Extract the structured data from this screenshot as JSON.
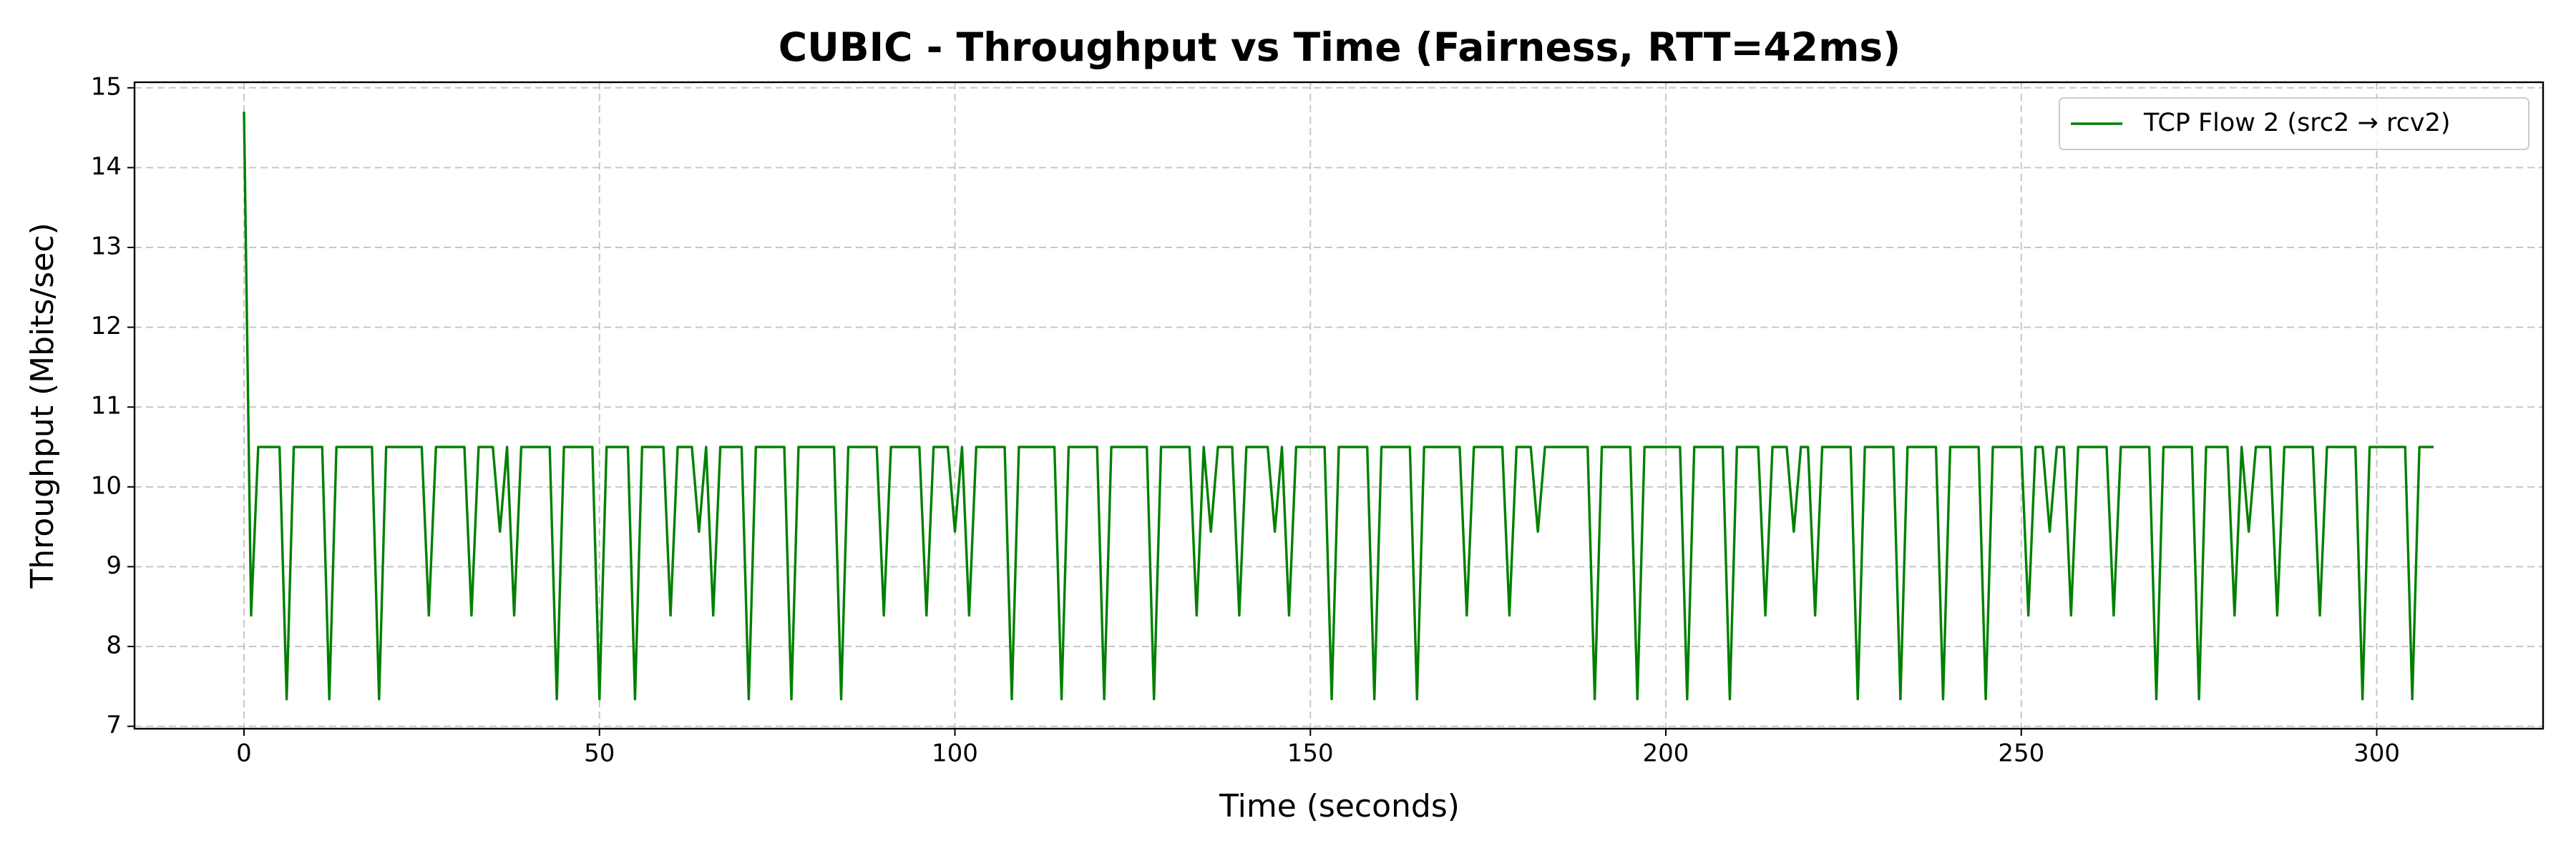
{
  "chart_data": {
    "type": "line",
    "title": "CUBIC - Throughput vs Time (Fairness, RTT=42ms)",
    "xlabel": "Time (seconds)",
    "ylabel": "Throughput (Mbits/sec)",
    "xlim": [
      -15.4,
      323.4
    ],
    "ylim": [
      6.97,
      15.07
    ],
    "xticks": [
      0,
      50,
      100,
      150,
      200,
      250,
      300
    ],
    "yticks": [
      7,
      8,
      9,
      10,
      11,
      12,
      13,
      14,
      15
    ],
    "grid": true,
    "legend": "upper right",
    "x": [
      0,
      1,
      2,
      3,
      4,
      5,
      6,
      7,
      8,
      9,
      10,
      11,
      12,
      13,
      14,
      15,
      16,
      17,
      18,
      19,
      20,
      21,
      22,
      23,
      24,
      25,
      26,
      27,
      28,
      29,
      30,
      31,
      32,
      33,
      34,
      35,
      36,
      37,
      38,
      39,
      40,
      41,
      42,
      43,
      44,
      45,
      46,
      47,
      48,
      49,
      50,
      51,
      52,
      53,
      54,
      55,
      56,
      57,
      58,
      59,
      60,
      61,
      62,
      63,
      64,
      65,
      66,
      67,
      68,
      69,
      70,
      71,
      72,
      73,
      74,
      75,
      76,
      77,
      78,
      79,
      80,
      81,
      82,
      83,
      84,
      85,
      86,
      87,
      88,
      89,
      90,
      91,
      92,
      93,
      94,
      95,
      96,
      97,
      98,
      99,
      100,
      101,
      102,
      103,
      104,
      105,
      106,
      107,
      108,
      109,
      110,
      111,
      112,
      113,
      114,
      115,
      116,
      117,
      118,
      119,
      120,
      121,
      122,
      123,
      124,
      125,
      126,
      127,
      128,
      129,
      130,
      131,
      132,
      133,
      134,
      135,
      136,
      137,
      138,
      139,
      140,
      141,
      142,
      143,
      144,
      145,
      146,
      147,
      148,
      149,
      150,
      151,
      152,
      153,
      154,
      155,
      156,
      157,
      158,
      159,
      160,
      161,
      162,
      163,
      164,
      165,
      166,
      167,
      168,
      169,
      170,
      171,
      172,
      173,
      174,
      175,
      176,
      177,
      178,
      179,
      180,
      181,
      182,
      183,
      184,
      185,
      186,
      187,
      188,
      189,
      190,
      191,
      192,
      193,
      194,
      195,
      196,
      197,
      198,
      199,
      200,
      201,
      202,
      203,
      204,
      205,
      206,
      207,
      208,
      209,
      210,
      211,
      212,
      213,
      214,
      215,
      216,
      217,
      218,
      219,
      220,
      221,
      222,
      223,
      224,
      225,
      226,
      227,
      228,
      229,
      230,
      231,
      232,
      233,
      234,
      235,
      236,
      237,
      238,
      239,
      240,
      241,
      242,
      243,
      244,
      245,
      246,
      247,
      248,
      249,
      250,
      251,
      252,
      253,
      254,
      255,
      256,
      257,
      258,
      259,
      260,
      261,
      262,
      263,
      264,
      265,
      266,
      267,
      268,
      269,
      270,
      271,
      272,
      273,
      274,
      275,
      276,
      277,
      278,
      279,
      280,
      281,
      282,
      283,
      284,
      285,
      286,
      287,
      288,
      289,
      290,
      291,
      292,
      293,
      294,
      295,
      296,
      297,
      298,
      299,
      300,
      301,
      302,
      303,
      304,
      305,
      306,
      307,
      308
    ],
    "series": [
      {
        "name": "TCP Flow 2 (src2 → rcv2)",
        "color": "#008000",
        "values": [
          14.7,
          8.39,
          10.5,
          10.5,
          10.5,
          10.5,
          7.34,
          10.5,
          10.5,
          10.5,
          10.5,
          10.5,
          7.34,
          10.5,
          10.5,
          10.5,
          10.5,
          10.5,
          10.5,
          7.34,
          10.5,
          10.5,
          10.5,
          10.5,
          10.5,
          10.5,
          8.39,
          10.5,
          10.5,
          10.5,
          10.5,
          10.5,
          8.39,
          10.5,
          10.5,
          10.5,
          9.44,
          10.5,
          8.39,
          10.5,
          10.5,
          10.5,
          10.5,
          10.5,
          7.34,
          10.5,
          10.5,
          10.5,
          10.5,
          10.5,
          7.34,
          10.5,
          10.5,
          10.5,
          10.5,
          7.34,
          10.5,
          10.5,
          10.5,
          10.5,
          8.39,
          10.5,
          10.5,
          10.5,
          9.44,
          10.5,
          8.39,
          10.5,
          10.5,
          10.5,
          10.5,
          7.34,
          10.5,
          10.5,
          10.5,
          10.5,
          10.5,
          7.34,
          10.5,
          10.5,
          10.5,
          10.5,
          10.5,
          10.5,
          7.34,
          10.5,
          10.5,
          10.5,
          10.5,
          10.5,
          8.39,
          10.5,
          10.5,
          10.5,
          10.5,
          10.5,
          8.39,
          10.5,
          10.5,
          10.5,
          9.44,
          10.5,
          8.39,
          10.5,
          10.5,
          10.5,
          10.5,
          10.5,
          7.34,
          10.5,
          10.5,
          10.5,
          10.5,
          10.5,
          10.5,
          7.34,
          10.5,
          10.5,
          10.5,
          10.5,
          10.5,
          7.34,
          10.5,
          10.5,
          10.5,
          10.5,
          10.5,
          10.5,
          7.34,
          10.5,
          10.5,
          10.5,
          10.5,
          10.5,
          8.39,
          10.5,
          9.44,
          10.5,
          10.5,
          10.5,
          8.39,
          10.5,
          10.5,
          10.5,
          10.5,
          9.44,
          10.5,
          8.39,
          10.5,
          10.5,
          10.5,
          10.5,
          10.5,
          7.34,
          10.5,
          10.5,
          10.5,
          10.5,
          10.5,
          7.34,
          10.5,
          10.5,
          10.5,
          10.5,
          10.5,
          7.34,
          10.5,
          10.5,
          10.5,
          10.5,
          10.5,
          10.5,
          8.39,
          10.5,
          10.5,
          10.5,
          10.5,
          10.5,
          8.39,
          10.5,
          10.5,
          10.5,
          9.44,
          10.5,
          10.5,
          10.5,
          10.5,
          10.5,
          10.5,
          10.5,
          7.34,
          10.5,
          10.5,
          10.5,
          10.5,
          10.5,
          7.34,
          10.5,
          10.5,
          10.5,
          10.5,
          10.5,
          10.5,
          7.34,
          10.5,
          10.5,
          10.5,
          10.5,
          10.5,
          7.34,
          10.5,
          10.5,
          10.5,
          10.5,
          8.39,
          10.5,
          10.5,
          10.5,
          9.44,
          10.5,
          10.5,
          8.39,
          10.5,
          10.5,
          10.5,
          10.5,
          10.5,
          7.34,
          10.5,
          10.5,
          10.5,
          10.5,
          10.5,
          7.34,
          10.5,
          10.5,
          10.5,
          10.5,
          10.5,
          7.34,
          10.5,
          10.5,
          10.5,
          10.5,
          10.5,
          7.34,
          10.5,
          10.5,
          10.5,
          10.5,
          10.5,
          8.39,
          10.5,
          10.5,
          9.44,
          10.5,
          10.5,
          8.39,
          10.5,
          10.5,
          10.5,
          10.5,
          10.5,
          8.39,
          10.5,
          10.5,
          10.5,
          10.5,
          10.5,
          7.34,
          10.5,
          10.5,
          10.5,
          10.5,
          10.5,
          7.34,
          10.5,
          10.5,
          10.5,
          10.5,
          8.39,
          10.5,
          9.44,
          10.5,
          10.5,
          10.5,
          8.39,
          10.5,
          10.5,
          10.5,
          10.5,
          10.5,
          8.39,
          10.5,
          10.5,
          10.5,
          10.5,
          10.5,
          7.34,
          10.5,
          10.5,
          10.5,
          10.5,
          10.5,
          10.5,
          7.34,
          10.5,
          10.5,
          10.5
        ]
      }
    ]
  }
}
